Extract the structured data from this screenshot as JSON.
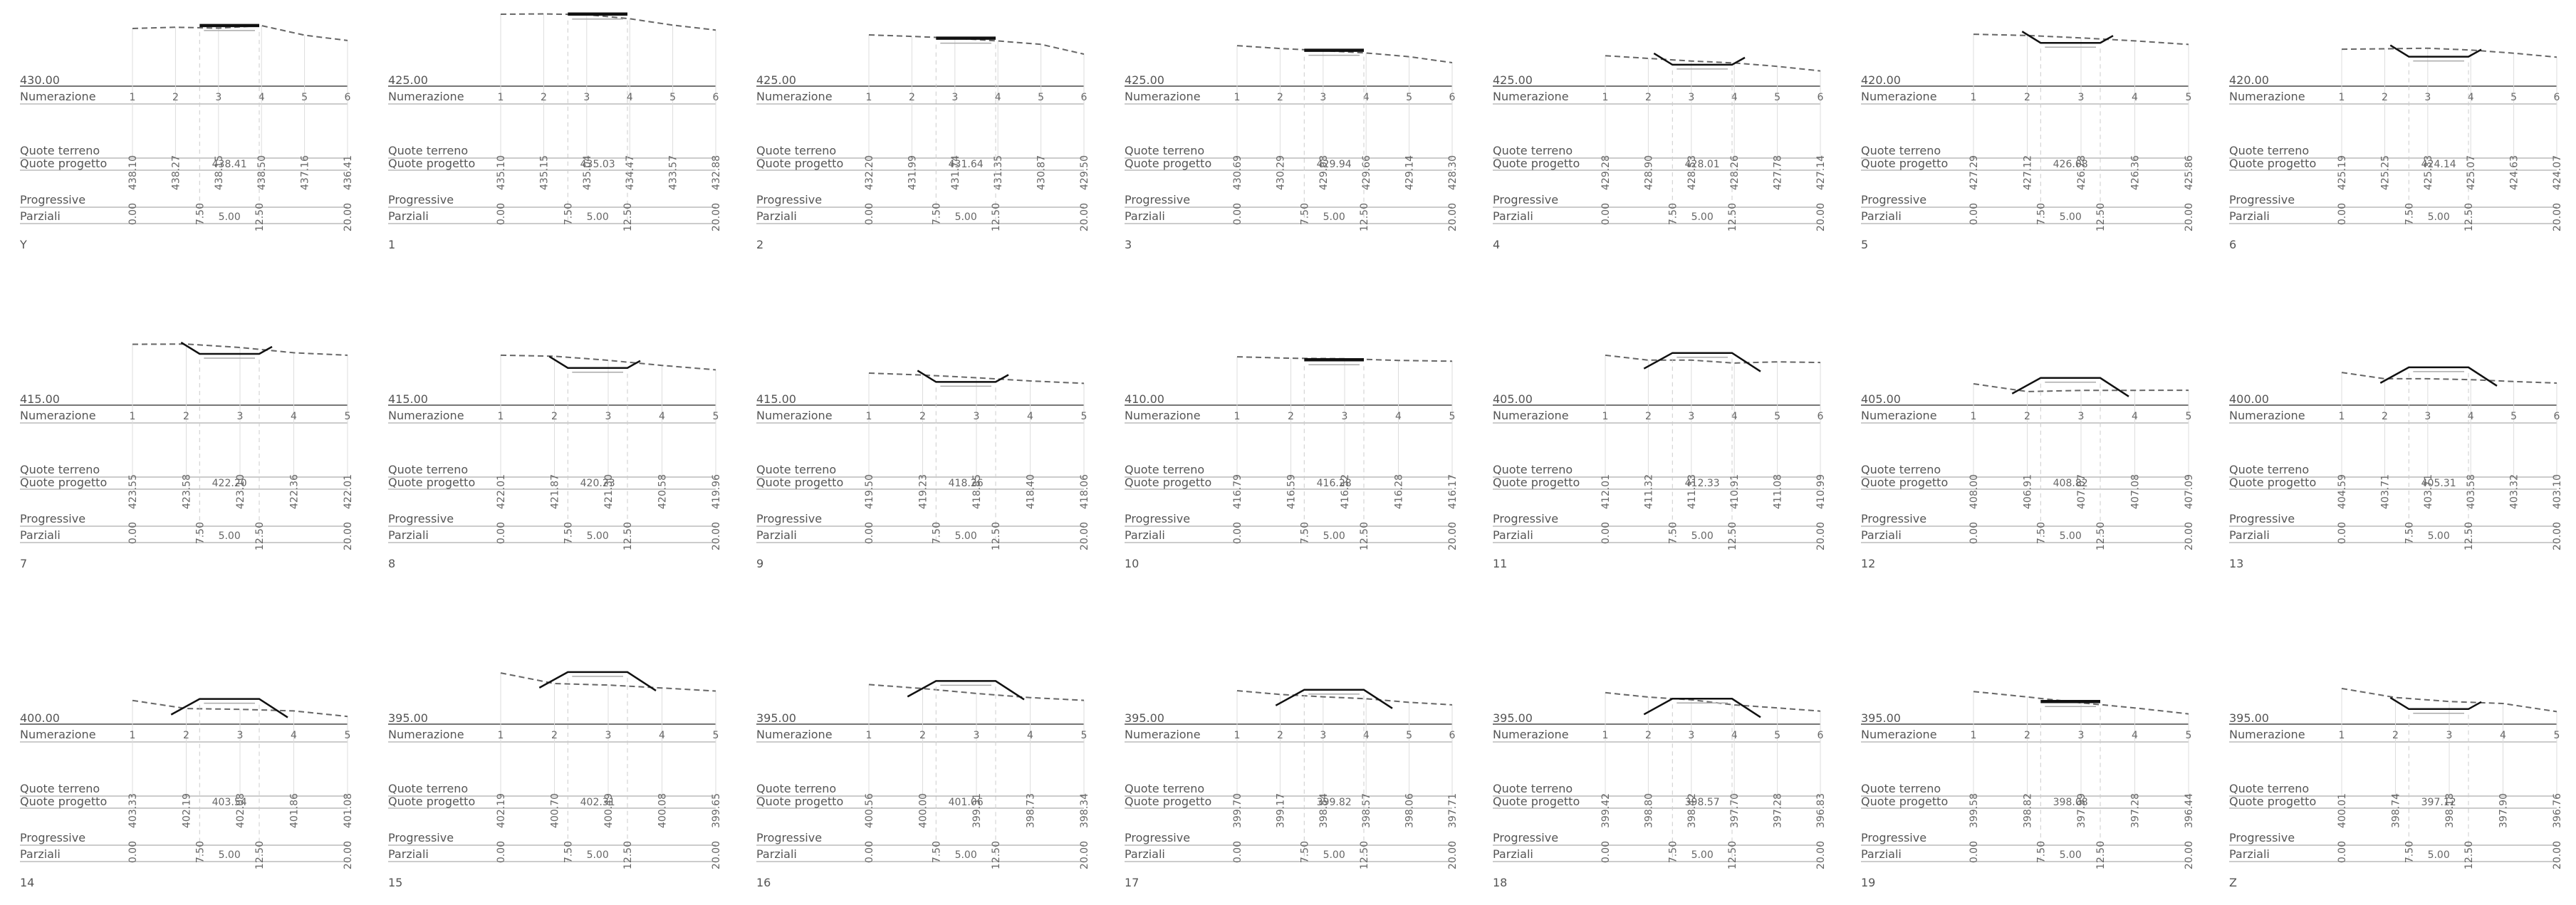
{
  "table_row_labels": {
    "numerazione": "Numerazione",
    "quote_terreno": "Quote terreno",
    "quote_progetto": "Quote progetto",
    "progressive": "Progressive",
    "parziali": "Parziali"
  },
  "sections": [
    {
      "name": "Y",
      "datum": "430.00",
      "terrain": [
        "438.10",
        "438.27",
        "438.15",
        "438.50",
        "437.16",
        "436.41"
      ],
      "progetto": "438.41",
      "kind": "flat"
    },
    {
      "name": "1",
      "datum": "425.00",
      "terrain": [
        "435.10",
        "435.15",
        "435.04",
        "434.47",
        "433.57",
        "432.88"
      ],
      "progetto": "435.03",
      "kind": "flat"
    },
    {
      "name": "2",
      "datum": "425.00",
      "terrain": [
        "432.20",
        "431.99",
        "431.74",
        "431.35",
        "430.87",
        "429.50"
      ],
      "progetto": "431.64",
      "kind": "flat"
    },
    {
      "name": "3",
      "datum": "425.00",
      "terrain": [
        "430.69",
        "430.29",
        "429.98",
        "429.66",
        "429.14",
        "428.30"
      ],
      "progetto": "429.94",
      "kind": "flat"
    },
    {
      "name": "4",
      "datum": "425.00",
      "terrain": [
        "429.28",
        "428.90",
        "428.53",
        "428.26",
        "427.78",
        "427.14"
      ],
      "progetto": "428.01",
      "kind": "cut"
    },
    {
      "name": "5",
      "datum": "420.00",
      "terrain": [
        "427.29",
        "427.12",
        "426.78",
        "426.36",
        "425.86"
      ],
      "progetto": "426.08",
      "kind": "cut"
    },
    {
      "name": "6",
      "datum": "420.00",
      "terrain": [
        "425.19",
        "425.25",
        "425.33",
        "425.07",
        "424.63",
        "424.07"
      ],
      "progetto": "424.14",
      "kind": "cut"
    },
    {
      "name": "7",
      "datum": "415.00",
      "terrain": [
        "423.55",
        "423.58",
        "423.10",
        "422.36",
        "422.01"
      ],
      "progetto": "422.20",
      "kind": "cut"
    },
    {
      "name": "8",
      "datum": "415.00",
      "terrain": [
        "422.01",
        "421.87",
        "421.30",
        "420.58",
        "419.96"
      ],
      "progetto": "420.23",
      "kind": "cut"
    },
    {
      "name": "9",
      "datum": "415.00",
      "terrain": [
        "419.50",
        "419.23",
        "418.85",
        "418.40",
        "418.06"
      ],
      "progetto": "418.26",
      "kind": "cut"
    },
    {
      "name": "10",
      "datum": "410.00",
      "terrain": [
        "416.79",
        "416.59",
        "416.52",
        "416.28",
        "416.17"
      ],
      "progetto": "416.28",
      "kind": "flat"
    },
    {
      "name": "11",
      "datum": "405.00",
      "terrain": [
        "412.01",
        "411.32",
        "411.33",
        "410.91",
        "411.08",
        "410.99"
      ],
      "progetto": "412.33",
      "kind": "fill"
    },
    {
      "name": "12",
      "datum": "405.00",
      "terrain": [
        "408.00",
        "406.91",
        "407.07",
        "407.08",
        "407.09"
      ],
      "progetto": "408.82",
      "kind": "fill"
    },
    {
      "name": "13",
      "datum": "400.00",
      "terrain": [
        "404.59",
        "403.71",
        "403.71",
        "403.58",
        "403.32",
        "403.10"
      ],
      "progetto": "405.31",
      "kind": "fill"
    },
    {
      "name": "14",
      "datum": "400.00",
      "terrain": [
        "403.33",
        "402.19",
        "402.08",
        "401.86",
        "401.08"
      ],
      "progetto": "403.54",
      "kind": "fill"
    },
    {
      "name": "15",
      "datum": "395.00",
      "terrain": [
        "402.19",
        "400.70",
        "400.49",
        "400.08",
        "399.65"
      ],
      "progetto": "402.31",
      "kind": "fill"
    },
    {
      "name": "16",
      "datum": "395.00",
      "terrain": [
        "400.56",
        "400.00",
        "399.31",
        "398.73",
        "398.34"
      ],
      "progetto": "401.06",
      "kind": "fill"
    },
    {
      "name": "17",
      "datum": "395.00",
      "terrain": [
        "399.70",
        "399.17",
        "398.84",
        "398.57",
        "398.06",
        "397.71"
      ],
      "progetto": "399.82",
      "kind": "fill"
    },
    {
      "name": "18",
      "datum": "395.00",
      "terrain": [
        "399.42",
        "398.80",
        "398.42",
        "397.70",
        "397.28",
        "396.83"
      ],
      "progetto": "398.57",
      "kind": "fill"
    },
    {
      "name": "19",
      "datum": "395.00",
      "terrain": [
        "399.58",
        "398.82",
        "397.99",
        "397.28",
        "396.44"
      ],
      "progetto": "398.08",
      "kind": "flat"
    },
    {
      "name": "Z",
      "datum": "395.00",
      "terrain": [
        "400.01",
        "398.74",
        "398.18",
        "397.90",
        "396.76"
      ],
      "progetto": "397.12",
      "kind": "cut"
    }
  ],
  "progressive_values": [
    "0.00",
    "7.50",
    "12.50",
    "20.00"
  ],
  "parziale_value": "5.00"
}
